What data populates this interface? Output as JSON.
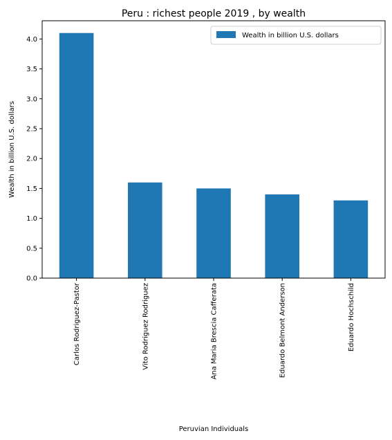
{
  "chart_data": {
    "type": "bar",
    "title": "Peru : richest people 2019 , by wealth",
    "xlabel": "Peruvian Individuals",
    "ylabel": "Wealth in billion U.S. dollars",
    "categories": [
      "Carlos Rodriguez-Pastor",
      "Vito Rodriguez Rodriguez",
      "Ana Maria Brescia Cafferata",
      "Eduardo Belmont Anderson",
      "Eduardo Hochschild"
    ],
    "series": [
      {
        "name": "Wealth in billion U.S. dollars",
        "values": [
          4.1,
          1.6,
          1.5,
          1.4,
          1.3
        ]
      }
    ],
    "yticks": [
      "0.0",
      "0.5",
      "1.0",
      "1.5",
      "2.0",
      "2.5",
      "3.0",
      "3.5",
      "4.0"
    ],
    "ylim": [
      0,
      4.305
    ],
    "legend_position": "top-right",
    "bar_color": "#1f77b4",
    "grid": false
  }
}
